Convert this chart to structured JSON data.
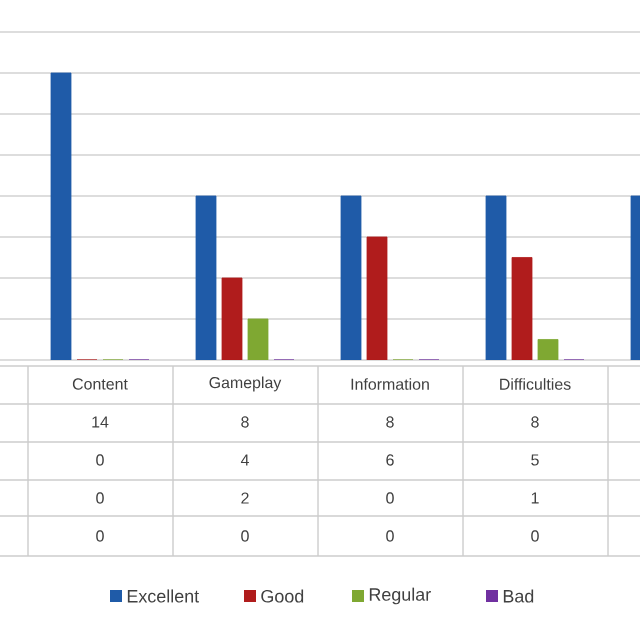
{
  "chart_data": {
    "type": "bar",
    "categories": [
      "Content",
      "Gameplay",
      "Information",
      "Difficulties",
      null
    ],
    "series": [
      {
        "name": "Excellent",
        "color": "#1f5ba8",
        "values": [
          14,
          8,
          8,
          8,
          8
        ],
        "value_labels": [
          "14",
          "8",
          "8",
          "8",
          null
        ]
      },
      {
        "name": "Good",
        "color": "#b01c1c",
        "values": [
          0,
          4,
          6,
          5,
          null
        ],
        "value_labels": [
          "0",
          "4",
          "6",
          "5",
          null
        ]
      },
      {
        "name": "Regular",
        "color": "#7fa832",
        "values": [
          0,
          2,
          0,
          1,
          null
        ],
        "value_labels": [
          "0",
          "2",
          "0",
          "1",
          null
        ]
      },
      {
        "name": "Bad",
        "color": "#7030a0",
        "values": [
          0,
          0,
          0,
          0,
          null
        ],
        "value_labels": [
          "0",
          "0",
          "0",
          "0",
          null
        ]
      }
    ],
    "ylim": [
      0,
      16
    ],
    "yticks": [
      {
        "value": 0,
        "label": null
      },
      {
        "value": 2,
        "label": null
      },
      {
        "value": 4,
        "label": null
      },
      {
        "value": 6,
        "label": null
      },
      {
        "value": 8,
        "label": null
      },
      {
        "value": 10,
        "label": null
      },
      {
        "value": 12,
        "label": null
      },
      {
        "value": 14,
        "label": null
      },
      {
        "value": 16,
        "label": null
      }
    ],
    "grid": "y",
    "legend": "bottom"
  }
}
